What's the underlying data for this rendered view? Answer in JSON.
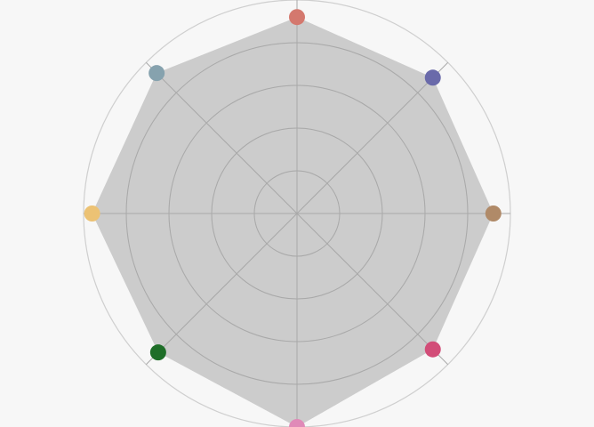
{
  "chart_data": {
    "type": "radar",
    "title": "",
    "axes_count": 8,
    "rings": 5,
    "range": [
      0,
      1
    ],
    "values": [
      0.92,
      0.9,
      0.92,
      0.9,
      1.0,
      0.92,
      0.96,
      0.93
    ],
    "point_colors": [
      "#d4786e",
      "#6a6aaa",
      "#b08a68",
      "#d24d78",
      "#e08ab8",
      "#1e6e28",
      "#ecc274",
      "#86a2ae"
    ],
    "area_color": "#c6c6c6",
    "grid_color": "#a9a9a9",
    "outer_ring_color": "#cfcfcf",
    "background": "#f7f7f7"
  }
}
